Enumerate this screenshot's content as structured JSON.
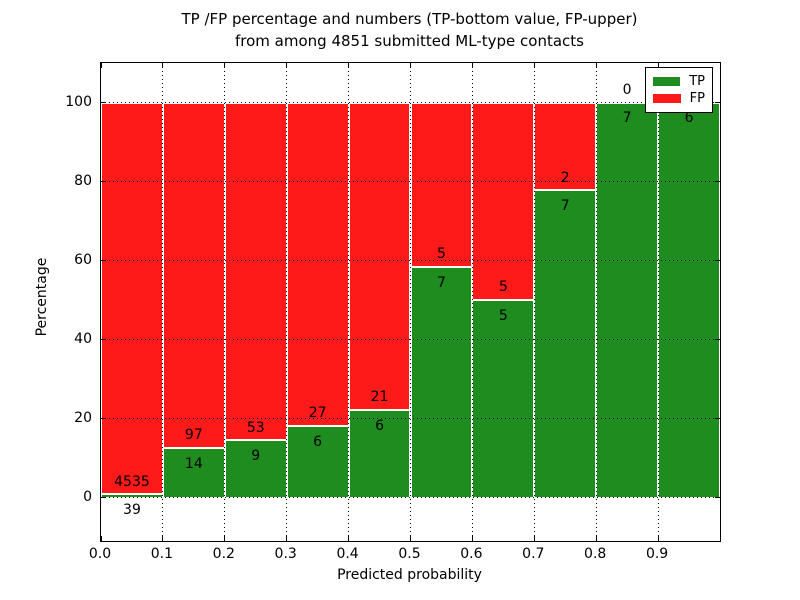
{
  "title": {
    "line1": "TP /FP percentage and numbers (TP-bottom value, FP-upper)",
    "line2": "from among 4851 submitted ML-type contacts"
  },
  "axes": {
    "xlabel": "Predicted probability",
    "ylabel": "Percentage",
    "x_tick_labels": [
      "0.0",
      "0.1",
      "0.2",
      "0.3",
      "0.4",
      "0.5",
      "0.6",
      "0.7",
      "0.8",
      "0.9"
    ],
    "y_tick_labels": [
      "0",
      "20",
      "40",
      "60",
      "80",
      "100"
    ],
    "y_ticks": [
      0,
      20,
      40,
      60,
      80,
      100
    ]
  },
  "legend": {
    "entries": [
      {
        "label": "TP",
        "color": "#1e8c1e"
      },
      {
        "label": "FP",
        "color": "#ff1a1a"
      }
    ]
  },
  "colors": {
    "tp": "#1e8c1e",
    "fp": "#ff1a1a",
    "grid": "#000000",
    "text": "#000000"
  },
  "chart_data": {
    "type": "bar",
    "stacked": true,
    "title": "TP /FP percentage and numbers (TP-bottom value, FP-upper) from among 4851 submitted ML-type contacts",
    "xlabel": "Predicted probability",
    "ylabel": "Percentage",
    "categories": [
      "0.0",
      "0.1",
      "0.2",
      "0.3",
      "0.4",
      "0.5",
      "0.6",
      "0.7",
      "0.8",
      "0.9"
    ],
    "bin_width": 0.1,
    "total_contacts": 4851,
    "ylim": [
      -11,
      110
    ],
    "yticks": [
      0,
      20,
      40,
      60,
      80,
      100
    ],
    "grid": true,
    "legend_position": "upper right",
    "series": [
      {
        "name": "TP",
        "position": "bottom",
        "color": "#1e8c1e",
        "counts": [
          39,
          14,
          9,
          6,
          6,
          7,
          5,
          7,
          7,
          6
        ],
        "pct_of_bin": [
          0.85,
          12.61,
          14.52,
          18.18,
          22.22,
          58.33,
          50.0,
          77.78,
          100.0,
          100.0
        ]
      },
      {
        "name": "FP",
        "position": "top",
        "color": "#ff1a1a",
        "counts": [
          4535,
          97,
          53,
          27,
          21,
          5,
          5,
          2,
          0,
          0
        ],
        "pct_of_bin": [
          99.15,
          87.39,
          85.48,
          81.82,
          77.78,
          41.67,
          50.0,
          22.22,
          0.0,
          0.0
        ]
      }
    ],
    "bars": [
      {
        "bin": "0.0",
        "tp_pct": 0.85,
        "tp_label": "39",
        "fp_label": "4535"
      },
      {
        "bin": "0.1",
        "tp_pct": 12.61,
        "tp_label": "14",
        "fp_label": "97"
      },
      {
        "bin": "0.2",
        "tp_pct": 14.52,
        "tp_label": "9",
        "fp_label": "53"
      },
      {
        "bin": "0.3",
        "tp_pct": 18.18,
        "tp_label": "6",
        "fp_label": "27"
      },
      {
        "bin": "0.4",
        "tp_pct": 22.22,
        "tp_label": "6",
        "fp_label": "21"
      },
      {
        "bin": "0.5",
        "tp_pct": 58.33,
        "tp_label": "7",
        "fp_label": "5"
      },
      {
        "bin": "0.6",
        "tp_pct": 50.0,
        "tp_label": "5",
        "fp_label": "5"
      },
      {
        "bin": "0.7",
        "tp_pct": 77.78,
        "tp_label": "7",
        "fp_label": "2"
      },
      {
        "bin": "0.8",
        "tp_pct": 100.0,
        "tp_label": "7",
        "fp_label": "0"
      },
      {
        "bin": "0.9",
        "tp_pct": 100.0,
        "tp_label": "6",
        "fp_label": ""
      }
    ]
  }
}
